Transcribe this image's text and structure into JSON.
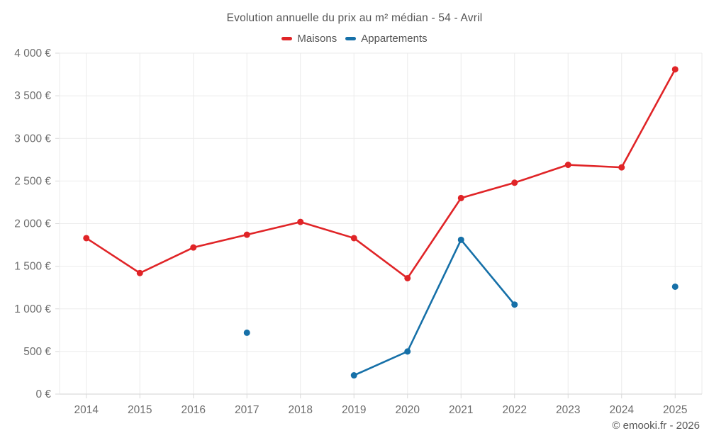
{
  "title": "Evolution annuelle du prix au m² médian - 54 - Avril",
  "legend": [
    {
      "label": "Maisons",
      "color": "#e02427"
    },
    {
      "label": "Appartements",
      "color": "#1670a8"
    }
  ],
  "footer": {
    "copyright": "© emooki.fr - 2026"
  },
  "colors": {
    "maisons": "#e02427",
    "appartements": "#1670a8",
    "grid": "#ebebeb",
    "axis": "#d9d9d9",
    "tick_label": "#6e6e6e"
  },
  "chart_data": {
    "type": "line",
    "title": "Evolution annuelle du prix au m² médian - 54 - Avril",
    "x": [
      2014,
      2015,
      2016,
      2017,
      2018,
      2019,
      2020,
      2021,
      2022,
      2023,
      2024,
      2025
    ],
    "series": [
      {
        "name": "Maisons",
        "color": "#e02427",
        "values": [
          1830,
          1420,
          1720,
          1870,
          2020,
          1830,
          1360,
          2300,
          2480,
          2690,
          2660,
          3810
        ]
      },
      {
        "name": "Appartements",
        "color": "#1670a8",
        "values": [
          null,
          null,
          null,
          720,
          null,
          220,
          500,
          1810,
          1050,
          null,
          null,
          1260
        ]
      }
    ],
    "xlabel": "",
    "ylabel": "",
    "ylim": [
      0,
      4000
    ],
    "yticks": [
      0,
      500,
      1000,
      1500,
      2000,
      2500,
      3000,
      3500,
      4000
    ],
    "ytick_labels": [
      "0 €",
      "500 €",
      "1 000 €",
      "1 500 €",
      "2 000 €",
      "2 500 €",
      "3 000 €",
      "3 500 €",
      "4 000 €"
    ],
    "grid": true,
    "legend_position": "top"
  }
}
